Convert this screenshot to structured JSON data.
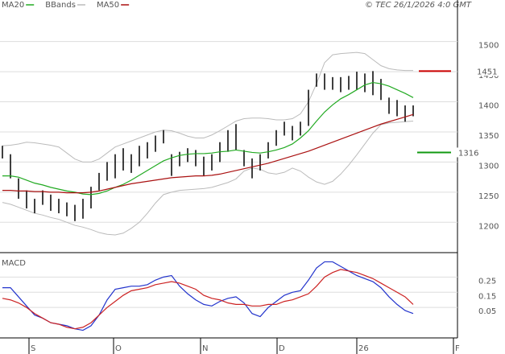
{
  "header": {
    "stamp": "© TEC 26/1/2026 4:0 GMT"
  },
  "chart_data": [
    {
      "type": "ohlc",
      "xlim": [
        -0.3,
        56.5
      ],
      "ylim": [
        1151,
        1569
      ],
      "yticks": [
        1200,
        1250,
        1300,
        1350,
        1400,
        1450,
        1500
      ],
      "grid": true,
      "bar_color": "#000000",
      "high": [
        1327,
        1313,
        1273,
        1253,
        1239,
        1253,
        1246,
        1239,
        1233,
        1229,
        1239,
        1259,
        1282,
        1300,
        1313,
        1323,
        1313,
        1327,
        1333,
        1344,
        1353,
        1313,
        1317,
        1323,
        1320,
        1309,
        1313,
        1333,
        1353,
        1363,
        1320,
        1306,
        1313,
        1333,
        1353,
        1367,
        1360,
        1367,
        1420,
        1447,
        1447,
        1441,
        1441,
        1443,
        1450,
        1447,
        1451,
        1438,
        1407,
        1403,
        1394,
        1394
      ],
      "low": [
        1306,
        1273,
        1239,
        1223,
        1215,
        1229,
        1219,
        1215,
        1210,
        1202,
        1206,
        1223,
        1253,
        1269,
        1273,
        1286,
        1282,
        1293,
        1306,
        1317,
        1331,
        1277,
        1293,
        1300,
        1293,
        1277,
        1286,
        1300,
        1317,
        1320,
        1293,
        1273,
        1286,
        1306,
        1327,
        1344,
        1336,
        1344,
        1360,
        1425,
        1420,
        1420,
        1416,
        1420,
        1420,
        1416,
        1411,
        1403,
        1380,
        1376,
        1367,
        1376
      ],
      "series": [
        {
          "name": "MA20",
          "color": "#22aa22",
          "values": [
            1277,
            1277,
            1275,
            1270,
            1265,
            1262,
            1258,
            1255,
            1252,
            1250,
            1247,
            1246,
            1248,
            1252,
            1258,
            1263,
            1270,
            1278,
            1286,
            1294,
            1302,
            1307,
            1311,
            1313,
            1314,
            1314,
            1315,
            1317,
            1318,
            1320,
            1318,
            1316,
            1315,
            1317,
            1320,
            1324,
            1330,
            1340,
            1352,
            1368,
            1383,
            1395,
            1405,
            1412,
            1420,
            1428,
            1432,
            1430,
            1426,
            1420,
            1414,
            1407
          ]
        },
        {
          "name": "MA50",
          "color": "#aa1111",
          "values": [
            1253,
            1253,
            1252,
            1252,
            1251,
            1251,
            1250,
            1250,
            1249,
            1249,
            1249,
            1250,
            1252,
            1255,
            1258,
            1261,
            1264,
            1266,
            1268,
            1270,
            1272,
            1274,
            1275,
            1276,
            1277,
            1277,
            1278,
            1280,
            1283,
            1286,
            1289,
            1292,
            1295,
            1298,
            1302,
            1306,
            1310,
            1314,
            1318,
            1323,
            1328,
            1333,
            1338,
            1343,
            1348,
            1353,
            1358,
            1363,
            1367,
            1371,
            1375,
            1379
          ]
        }
      ],
      "bands": {
        "name": "BBands",
        "color": "#bbbbbb",
        "upper": [
          1327,
          1328,
          1330,
          1333,
          1332,
          1330,
          1328,
          1325,
          1315,
          1305,
          1300,
          1300,
          1305,
          1315,
          1325,
          1330,
          1335,
          1340,
          1345,
          1350,
          1353,
          1352,
          1348,
          1343,
          1340,
          1340,
          1345,
          1352,
          1360,
          1368,
          1372,
          1373,
          1373,
          1372,
          1370,
          1370,
          1372,
          1380,
          1400,
          1430,
          1465,
          1478,
          1480,
          1481,
          1482,
          1480,
          1470,
          1460,
          1455,
          1453,
          1452,
          1452
        ],
        "lower": [
          1233,
          1230,
          1225,
          1220,
          1215,
          1212,
          1208,
          1205,
          1200,
          1195,
          1192,
          1188,
          1183,
          1180,
          1179,
          1182,
          1190,
          1200,
          1215,
          1232,
          1246,
          1250,
          1253,
          1254,
          1255,
          1256,
          1258,
          1262,
          1266,
          1272,
          1285,
          1290,
          1288,
          1282,
          1280,
          1283,
          1290,
          1285,
          1275,
          1267,
          1263,
          1268,
          1280,
          1295,
          1312,
          1330,
          1348,
          1362,
          1365,
          1366,
          1367,
          1368
        ]
      },
      "levels": [
        {
          "value": 1451,
          "color": "#cc0000"
        },
        {
          "value": 1316,
          "color": "#119911"
        }
      ]
    },
    {
      "type": "line",
      "title": "MACD",
      "xlim": [
        -0.3,
        56.5
      ],
      "ylim": [
        -0.15,
        0.4
      ],
      "yticks": [
        0.05,
        0.15,
        0.25
      ],
      "grid": true,
      "xticks": [
        {
          "value": 3.3,
          "label": "S"
        },
        {
          "value": 13.8,
          "label": "O"
        },
        {
          "value": 24.6,
          "label": "N"
        },
        {
          "value": 34.1,
          "label": "D"
        },
        {
          "value": 44,
          "label": "26"
        },
        {
          "value": 56,
          "label": "F"
        }
      ],
      "series": [
        {
          "color": "#2233cc",
          "values": [
            0.18,
            0.18,
            0.12,
            0.06,
            0,
            -0.02,
            -0.05,
            -0.06,
            -0.07,
            -0.09,
            -0.1,
            -0.07,
            0,
            0.1,
            0.17,
            0.18,
            0.19,
            0.19,
            0.2,
            0.23,
            0.25,
            0.26,
            0.19,
            0.14,
            0.1,
            0.07,
            0.06,
            0.09,
            0.11,
            0.12,
            0.08,
            0.01,
            -0.01,
            0.05,
            0.09,
            0.13,
            0.15,
            0.16,
            0.23,
            0.31,
            0.35,
            0.35,
            0.32,
            0.29,
            0.26,
            0.24,
            0.22,
            0.18,
            0.12,
            0.07,
            0.03,
            0.01
          ]
        },
        {
          "color": "#cc2222",
          "values": [
            0.11,
            0.1,
            0.08,
            0.05,
            0.01,
            -0.02,
            -0.05,
            -0.06,
            -0.08,
            -0.09,
            -0.08,
            -0.05,
            0,
            0.05,
            0.09,
            0.13,
            0.16,
            0.17,
            0.18,
            0.2,
            0.21,
            0.22,
            0.21,
            0.19,
            0.17,
            0.13,
            0.11,
            0.1,
            0.08,
            0.07,
            0.07,
            0.06,
            0.06,
            0.07,
            0.07,
            0.09,
            0.1,
            0.12,
            0.14,
            0.19,
            0.25,
            0.28,
            0.3,
            0.29,
            0.28,
            0.26,
            0.24,
            0.21,
            0.18,
            0.15,
            0.12,
            0.07
          ]
        }
      ]
    }
  ]
}
